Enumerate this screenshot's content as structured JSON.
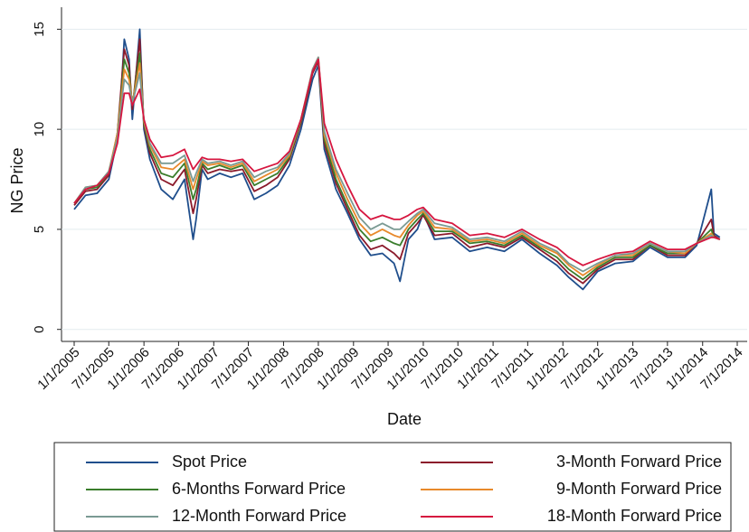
{
  "chart_data": {
    "type": "line",
    "x_label": "Date",
    "y_label": "NG Price",
    "x": [
      "1/1/2005",
      "3/1/2005",
      "5/1/2005",
      "7/1/2005",
      "8/15/2005",
      "9/1/2005",
      "9/20/2005",
      "10/15/2005",
      "11/1/2005",
      "12/10/2005",
      "1/1/2006",
      "2/1/2006",
      "4/1/2006",
      "6/1/2006",
      "8/1/2006",
      "9/15/2006",
      "10/1/2006",
      "11/1/2006",
      "12/1/2006",
      "2/1/2007",
      "4/1/2007",
      "6/1/2007",
      "8/1/2007",
      "10/1/2007",
      "12/1/2007",
      "2/1/2008",
      "4/1/2008",
      "6/1/2008",
      "7/1/2008",
      "8/1/2008",
      "10/1/2008",
      "12/1/2008",
      "2/1/2009",
      "4/1/2009",
      "6/1/2009",
      "8/1/2009",
      "9/1/2009",
      "10/15/2009",
      "12/1/2009",
      "1/1/2010",
      "3/1/2010",
      "6/1/2010",
      "9/1/2010",
      "12/1/2010",
      "3/1/2011",
      "6/1/2011",
      "9/1/2011",
      "12/1/2011",
      "2/1/2012",
      "4/15/2012",
      "7/1/2012",
      "10/1/2012",
      "1/1/2013",
      "4/1/2013",
      "7/1/2013",
      "10/1/2013",
      "12/1/2013",
      "2/15/2014",
      "3/1/2014",
      "4/1/2014"
    ],
    "series": [
      {
        "name": "Spot Price",
        "color": "#1f4e8c",
        "values": [
          6.0,
          6.7,
          6.8,
          7.5,
          9.5,
          11.5,
          14.5,
          13.5,
          10.5,
          15.0,
          10.0,
          8.5,
          7.0,
          6.5,
          7.5,
          4.5,
          5.5,
          8.0,
          7.5,
          7.8,
          7.6,
          7.8,
          6.5,
          6.8,
          7.2,
          8.2,
          10.0,
          12.5,
          13.2,
          9.0,
          7.0,
          5.8,
          4.5,
          3.7,
          3.8,
          3.3,
          2.4,
          4.5,
          5.0,
          5.8,
          4.5,
          4.6,
          3.9,
          4.1,
          3.9,
          4.5,
          3.8,
          3.2,
          2.6,
          2.0,
          2.9,
          3.3,
          3.4,
          4.1,
          3.6,
          3.6,
          4.2,
          7.0,
          4.8,
          4.6
        ]
      },
      {
        "name": "3-Month Forward Price",
        "color": "#8b1a2b",
        "values": [
          6.2,
          6.9,
          7.0,
          7.7,
          9.8,
          11.8,
          14.0,
          13.2,
          11.0,
          14.5,
          10.2,
          8.8,
          7.5,
          7.2,
          8.0,
          5.8,
          6.5,
          8.2,
          7.8,
          8.0,
          7.9,
          8.0,
          6.9,
          7.2,
          7.6,
          8.5,
          10.3,
          12.8,
          13.4,
          9.3,
          7.3,
          6.0,
          4.7,
          4.0,
          4.2,
          3.8,
          3.5,
          4.8,
          5.3,
          5.7,
          4.7,
          4.8,
          4.1,
          4.3,
          4.1,
          4.6,
          4.0,
          3.4,
          2.8,
          2.3,
          3.0,
          3.5,
          3.5,
          4.2,
          3.7,
          3.7,
          4.3,
          5.5,
          4.7,
          4.5
        ]
      },
      {
        "name": "6-Months Forward Price",
        "color": "#3a7d2c",
        "values": [
          6.3,
          7.0,
          7.1,
          7.8,
          9.8,
          11.5,
          13.5,
          12.8,
          11.2,
          13.8,
          10.3,
          9.0,
          7.8,
          7.6,
          8.3,
          6.5,
          7.0,
          8.3,
          8.0,
          8.2,
          8.0,
          8.2,
          7.2,
          7.5,
          7.8,
          8.6,
          10.4,
          12.9,
          13.5,
          9.5,
          7.5,
          6.2,
          5.0,
          4.4,
          4.6,
          4.3,
          4.2,
          5.0,
          5.5,
          5.8,
          4.9,
          4.9,
          4.3,
          4.4,
          4.2,
          4.7,
          4.1,
          3.6,
          3.0,
          2.5,
          3.1,
          3.6,
          3.6,
          4.2,
          3.8,
          3.8,
          4.3,
          5.0,
          4.6,
          4.5
        ]
      },
      {
        "name": "9-Month Forward Price",
        "color": "#e8892b",
        "values": [
          6.3,
          7.1,
          7.2,
          7.9,
          9.8,
          11.3,
          13.0,
          12.5,
          11.3,
          13.3,
          10.4,
          9.2,
          8.1,
          8.0,
          8.5,
          7.0,
          7.5,
          8.4,
          8.2,
          8.3,
          8.1,
          8.3,
          7.4,
          7.7,
          8.0,
          8.7,
          10.5,
          13.0,
          13.6,
          9.7,
          7.8,
          6.5,
          5.3,
          4.7,
          5.0,
          4.7,
          4.6,
          5.2,
          5.7,
          5.9,
          5.1,
          5.0,
          4.4,
          4.5,
          4.3,
          4.8,
          4.2,
          3.8,
          3.2,
          2.7,
          3.2,
          3.7,
          3.7,
          4.3,
          3.9,
          3.8,
          4.3,
          4.8,
          4.6,
          4.5
        ]
      },
      {
        "name": "12-Month Forward Price",
        "color": "#7a9a93",
        "values": [
          6.3,
          7.1,
          7.2,
          7.9,
          9.6,
          11.0,
          12.5,
          12.2,
          11.3,
          12.8,
          10.5,
          9.3,
          8.3,
          8.3,
          8.7,
          7.4,
          7.8,
          8.5,
          8.3,
          8.4,
          8.2,
          8.4,
          7.6,
          7.9,
          8.1,
          8.8,
          10.5,
          13.0,
          13.6,
          9.9,
          8.0,
          6.8,
          5.6,
          5.0,
          5.3,
          5.0,
          5.0,
          5.4,
          5.8,
          6.0,
          5.3,
          5.1,
          4.5,
          4.6,
          4.4,
          4.9,
          4.3,
          3.9,
          3.3,
          2.9,
          3.3,
          3.7,
          3.8,
          4.3,
          3.9,
          3.9,
          4.3,
          4.7,
          4.6,
          4.5
        ]
      },
      {
        "name": "18-Month Forward Price",
        "color": "#d6163f",
        "values": [
          6.3,
          7.0,
          7.2,
          7.8,
          9.3,
          10.5,
          11.8,
          11.8,
          11.2,
          12.0,
          10.5,
          9.5,
          8.6,
          8.7,
          9.0,
          8.0,
          8.2,
          8.6,
          8.5,
          8.5,
          8.4,
          8.5,
          7.9,
          8.1,
          8.3,
          8.9,
          10.5,
          12.9,
          13.5,
          10.3,
          8.5,
          7.2,
          6.0,
          5.5,
          5.7,
          5.5,
          5.5,
          5.7,
          6.0,
          6.1,
          5.5,
          5.3,
          4.7,
          4.8,
          4.6,
          5.0,
          4.5,
          4.1,
          3.6,
          3.2,
          3.5,
          3.8,
          3.9,
          4.4,
          4.0,
          4.0,
          4.3,
          4.6,
          4.6,
          4.5
        ]
      }
    ],
    "xlim": [
      "1/1/2005",
      "7/1/2014"
    ],
    "xticks": [
      "1/1/2005",
      "7/1/2005",
      "1/1/2006",
      "7/1/2006",
      "1/1/2007",
      "7/1/2007",
      "1/1/2008",
      "7/1/2008",
      "1/1/2009",
      "7/1/2009",
      "1/1/2010",
      "7/1/2010",
      "1/1/2011",
      "7/1/2011",
      "1/1/2012",
      "7/1/2012",
      "1/1/2013",
      "7/1/2013",
      "1/1/2014",
      "7/1/2014"
    ],
    "ylim": [
      -0.6,
      16.1
    ],
    "yticks": [
      0,
      5,
      10,
      15
    ],
    "grid": true,
    "legend": "bottom"
  }
}
